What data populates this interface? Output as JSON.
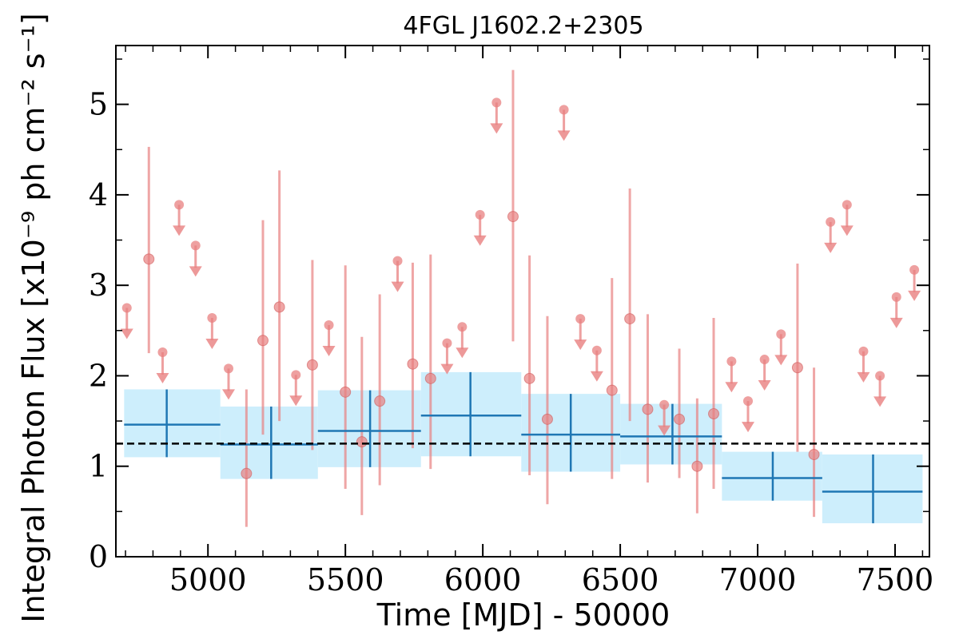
{
  "chart_data": {
    "type": "scatter",
    "title": "4FGL J1602.2+2305",
    "xlabel": "Time [MJD] - 50000",
    "ylabel": "Integral Photon Flux [x10⁻⁹ ph cm⁻² s⁻¹]",
    "xlim": [
      4665,
      7625
    ],
    "ylim": [
      0,
      5.65
    ],
    "x_ticks": [
      5000,
      5500,
      6000,
      6500,
      7000,
      7500
    ],
    "x_tick_labels": [
      "5000",
      "5500",
      "6000",
      "6500",
      "7000",
      "7500"
    ],
    "y_ticks": [
      0,
      1,
      2,
      3,
      4,
      5
    ],
    "y_tick_labels": [
      "0",
      "1",
      "2",
      "3",
      "4",
      "5"
    ],
    "x_minor_step": 100,
    "y_minor_step": 0.5,
    "grid": false,
    "reference_level": 1.25,
    "colors": {
      "monthly": "#e88080",
      "yearly_line": "#1f77b4",
      "yearly_band": "#cdeefc",
      "reference": "#000000"
    },
    "series": [
      {
        "kind": "detections",
        "points": [
          {
            "x": 4785,
            "y": 3.29,
            "lo": 2.25,
            "hi": 4.53
          },
          {
            "x": 5140,
            "y": 0.92,
            "lo": 0.33,
            "hi": 1.85
          },
          {
            "x": 5200,
            "y": 2.39,
            "lo": 1.35,
            "hi": 3.72
          },
          {
            "x": 5260,
            "y": 2.76,
            "lo": 1.5,
            "hi": 4.27
          },
          {
            "x": 5380,
            "y": 2.12,
            "lo": 1.18,
            "hi": 3.28
          },
          {
            "x": 5500,
            "y": 1.82,
            "lo": 0.75,
            "hi": 3.22
          },
          {
            "x": 5560,
            "y": 1.27,
            "lo": 0.46,
            "hi": 2.43
          },
          {
            "x": 5625,
            "y": 1.72,
            "lo": 0.79,
            "hi": 2.9
          },
          {
            "x": 5745,
            "y": 2.13,
            "lo": 1.2,
            "hi": 3.25
          },
          {
            "x": 5810,
            "y": 1.97,
            "lo": 0.97,
            "hi": 3.34
          },
          {
            "x": 6110,
            "y": 3.76,
            "lo": 2.38,
            "hi": 5.38
          },
          {
            "x": 6170,
            "y": 1.97,
            "lo": 0.9,
            "hi": 3.33
          },
          {
            "x": 6235,
            "y": 1.52,
            "lo": 0.58,
            "hi": 2.66
          },
          {
            "x": 6470,
            "y": 1.84,
            "lo": 0.86,
            "hi": 3.08
          },
          {
            "x": 6535,
            "y": 2.63,
            "lo": 1.5,
            "hi": 4.07
          },
          {
            "x": 6600,
            "y": 1.63,
            "lo": 0.82,
            "hi": 2.68
          },
          {
            "x": 6715,
            "y": 1.52,
            "lo": 0.87,
            "hi": 2.3
          },
          {
            "x": 6780,
            "y": 1.0,
            "lo": 0.48,
            "hi": 1.75
          },
          {
            "x": 6840,
            "y": 1.58,
            "lo": 0.75,
            "hi": 2.64
          },
          {
            "x": 7145,
            "y": 2.09,
            "lo": 1.16,
            "hi": 3.24
          },
          {
            "x": 7205,
            "y": 1.13,
            "lo": 0.44,
            "hi": 2.09
          }
        ]
      },
      {
        "kind": "upper_limits",
        "points": [
          {
            "x": 4705,
            "y": 2.75
          },
          {
            "x": 4835,
            "y": 2.26
          },
          {
            "x": 4895,
            "y": 3.89
          },
          {
            "x": 4955,
            "y": 3.44
          },
          {
            "x": 5015,
            "y": 2.64
          },
          {
            "x": 5075,
            "y": 2.08
          },
          {
            "x": 5320,
            "y": 2.01
          },
          {
            "x": 5440,
            "y": 2.56
          },
          {
            "x": 5690,
            "y": 3.27
          },
          {
            "x": 5870,
            "y": 2.36
          },
          {
            "x": 5925,
            "y": 2.54
          },
          {
            "x": 5990,
            "y": 3.78
          },
          {
            "x": 6050,
            "y": 5.02
          },
          {
            "x": 6295,
            "y": 4.94
          },
          {
            "x": 6355,
            "y": 2.63
          },
          {
            "x": 6415,
            "y": 2.28
          },
          {
            "x": 6660,
            "y": 1.68
          },
          {
            "x": 6905,
            "y": 2.16
          },
          {
            "x": 6965,
            "y": 1.72
          },
          {
            "x": 7025,
            "y": 2.18
          },
          {
            "x": 7085,
            "y": 2.46
          },
          {
            "x": 7265,
            "y": 3.7
          },
          {
            "x": 7325,
            "y": 3.89
          },
          {
            "x": 7385,
            "y": 2.27
          },
          {
            "x": 7445,
            "y": 2.0
          },
          {
            "x": 7505,
            "y": 2.87
          },
          {
            "x": 7570,
            "y": 3.17
          }
        ]
      },
      {
        "kind": "yearly_bins",
        "bins": [
          {
            "x0": 4695,
            "x1": 5045,
            "xc": 4850,
            "y": 1.46,
            "lo": 1.1,
            "hi": 1.85
          },
          {
            "x0": 5045,
            "x1": 5400,
            "xc": 5230,
            "y": 1.24,
            "lo": 0.86,
            "hi": 1.66
          },
          {
            "x0": 5400,
            "x1": 5775,
            "xc": 5590,
            "y": 1.39,
            "lo": 0.99,
            "hi": 1.84
          },
          {
            "x0": 5775,
            "x1": 6140,
            "xc": 5955,
            "y": 1.56,
            "lo": 1.11,
            "hi": 2.04
          },
          {
            "x0": 6140,
            "x1": 6500,
            "xc": 6320,
            "y": 1.35,
            "lo": 0.94,
            "hi": 1.8
          },
          {
            "x0": 6500,
            "x1": 6870,
            "xc": 6690,
            "y": 1.33,
            "lo": 1.02,
            "hi": 1.69
          },
          {
            "x0": 6870,
            "x1": 7235,
            "xc": 7055,
            "y": 0.87,
            "lo": 0.62,
            "hi": 1.16
          },
          {
            "x0": 7235,
            "x1": 7600,
            "xc": 7420,
            "y": 0.72,
            "lo": 0.37,
            "hi": 1.13
          }
        ]
      }
    ]
  }
}
